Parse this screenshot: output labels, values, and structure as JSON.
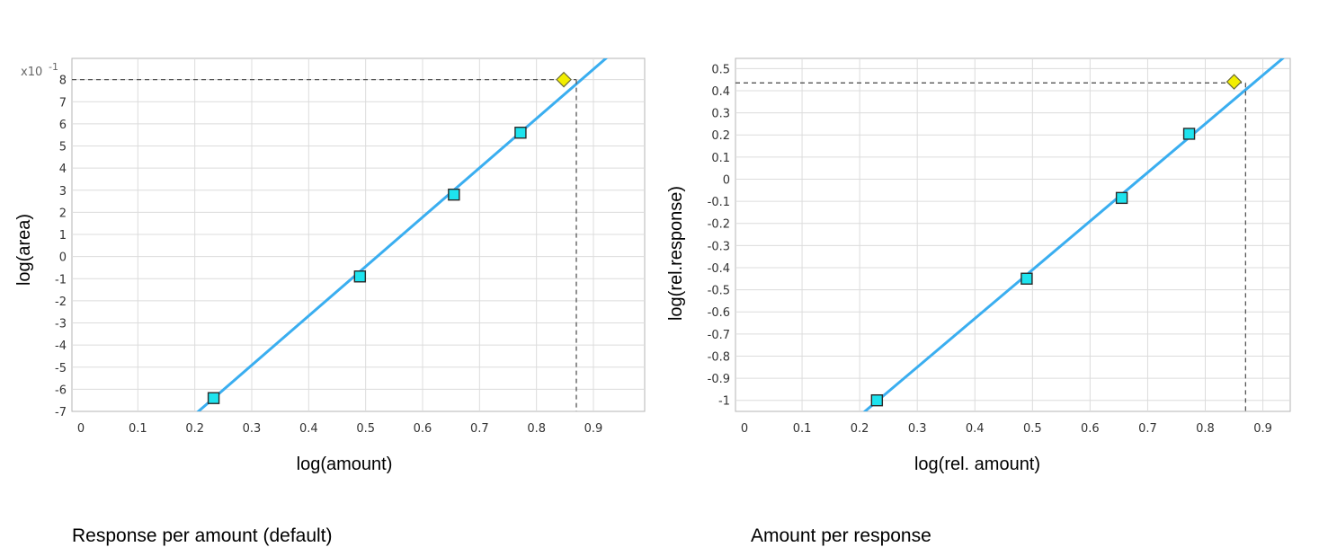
{
  "captions": {
    "left": "Response per amount (default)",
    "right": "Amount per response"
  },
  "colors": {
    "line": "#3aaef0",
    "calibration_point": "#1ee3ee",
    "sample_point": "#f2ee00",
    "grid": "#dcdcdc",
    "frame": "#b4b4b4"
  },
  "chart_data": [
    {
      "type": "scatter",
      "xlabel": "log(amount)",
      "ylabel": "log(area)",
      "y_multiplier": {
        "base": "x10",
        "exponent": "-1"
      },
      "xlim": [
        0,
        0.96
      ],
      "ylim": [
        -7,
        9
      ],
      "x_ticks": [
        "0",
        "0.1",
        "0.2",
        "0.3",
        "0.4",
        "0.5",
        "0.6",
        "0.7",
        "0.8",
        "0.9"
      ],
      "y_ticks": [
        "-7",
        "-6",
        "-5",
        "-4",
        "-3",
        "-2",
        "-1",
        "0",
        "1",
        "2",
        "3",
        "4",
        "5",
        "6",
        "7",
        "8"
      ],
      "grid": true,
      "series": [
        {
          "points": [
            [
              0.233,
              -6.4
            ],
            [
              0.49,
              -0.9
            ],
            [
              0.655,
              2.8
            ],
            [
              0.772,
              5.6
            ]
          ]
        },
        {
          "points": [
            [
              0.848,
              8.0
            ]
          ]
        }
      ],
      "fit_line": {
        "slope": 22.3,
        "intercept": -11.6
      },
      "readout": {
        "x": 0.87,
        "y": 8.0
      }
    },
    {
      "type": "scatter",
      "xlabel": "log(rel. amount)",
      "ylabel": "log(rel.response)",
      "xlim": [
        0,
        0.96
      ],
      "ylim": [
        -1.05,
        0.55
      ],
      "x_ticks": [
        "0",
        "0.1",
        "0.2",
        "0.3",
        "0.4",
        "0.5",
        "0.6",
        "0.7",
        "0.8",
        "0.9"
      ],
      "y_ticks": [
        "-1",
        "-0.9",
        "-0.8",
        "-0.7",
        "-0.6",
        "-0.5",
        "-0.4",
        "-0.3",
        "-0.2",
        "-0.1",
        "0",
        "0.1",
        "0.2",
        "0.3",
        "0.4",
        "0.5"
      ],
      "grid": true,
      "series": [
        {
          "points": [
            [
              0.23,
              -1.0
            ],
            [
              0.49,
              -0.45
            ],
            [
              0.655,
              -0.085
            ],
            [
              0.772,
              0.205
            ]
          ]
        },
        {
          "points": [
            [
              0.85,
              0.44
            ]
          ]
        }
      ],
      "fit_line": {
        "slope": 2.2,
        "intercept": -1.51
      },
      "readout": {
        "x": 0.87,
        "y": 0.435
      }
    }
  ]
}
